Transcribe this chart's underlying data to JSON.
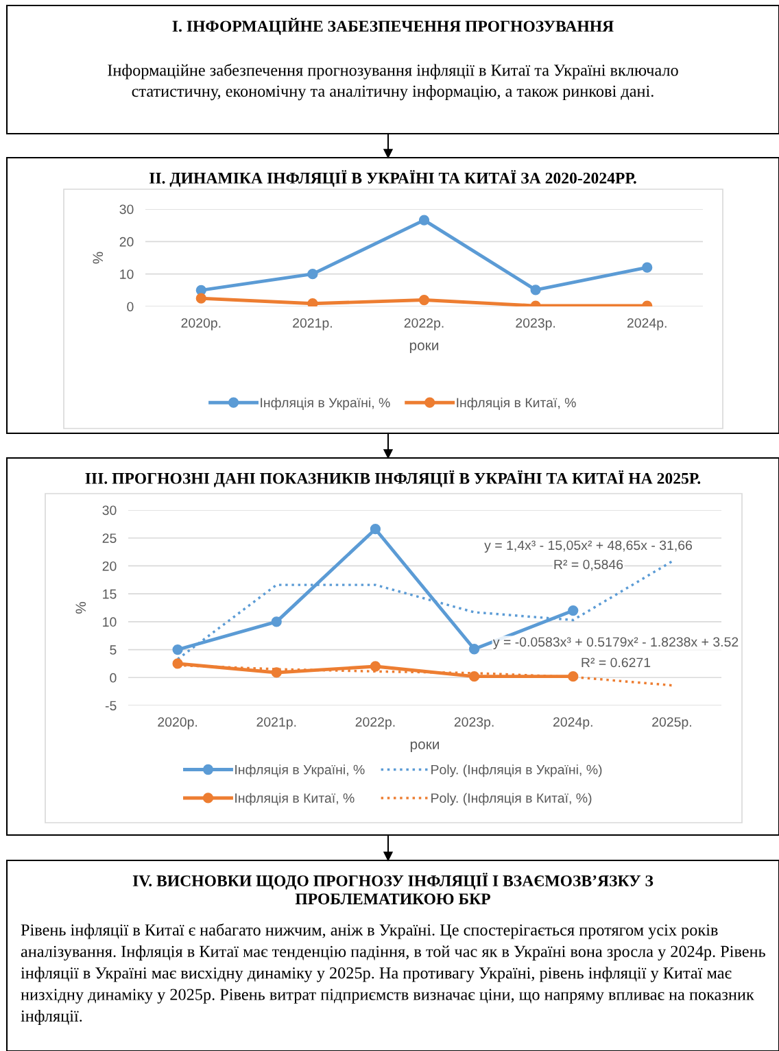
{
  "chart_data": [
    {
      "type": "other",
      "title": "I. ІНФОРМАЦІЙНЕ ЗАБЕЗПЕЧЕННЯ ПРОГНОЗУВАННЯ",
      "annotations": [
        "Інформаційне забезпечення прогнозування інфляції в Китаї та Україні включало\nстатистичну, економічну та аналітичну інформацію, а також ринкові дані."
      ]
    },
    {
      "type": "line",
      "title": "II. ДИНАМІКА ІНФЛЯЦІЇ В УКРАЇНІ ТА КИТАЇ ЗА 2020-2024РР.",
      "xlabel": "роки",
      "ylabel": "%",
      "categories": [
        "2020р.",
        "2021р.",
        "2022р.",
        "2023р.",
        "2024р."
      ],
      "series": [
        {
          "name": "Інфляція в Україні, %",
          "color": "#5b9bd5",
          "values": [
            5.0,
            10.0,
            26.6,
            5.1,
            12.0
          ]
        },
        {
          "name": "Інфляція в Китаї, %",
          "color": "#ed7d31",
          "values": [
            2.5,
            0.9,
            2.0,
            0.2,
            0.2
          ]
        }
      ],
      "ylim": [
        0,
        30
      ],
      "yticks": [
        0,
        10,
        20,
        30
      ],
      "grid": "y",
      "legend": "bottom",
      "marker": "circle"
    },
    {
      "type": "line",
      "title": "III. ПРОГНОЗНІ ДАНІ ПОКАЗНИКІВ ІНФЛЯЦІЇ В УКРАЇНІ ТА КИТАЇ НА 2025Р.",
      "xlabel": "роки",
      "ylabel": "%",
      "categories": [
        "2020р.",
        "2021р.",
        "2022р.",
        "2023р.",
        "2024р.",
        "2025р."
      ],
      "series": [
        {
          "name": "Інфляція в Україні, %",
          "color": "#5b9bd5",
          "values": [
            5.0,
            10.0,
            26.6,
            5.1,
            12.0,
            null
          ]
        },
        {
          "name": "Інфляція в Китаї, %",
          "color": "#ed7d31",
          "values": [
            2.5,
            0.9,
            2.0,
            0.2,
            0.2,
            null
          ]
        },
        {
          "name": "Poly. (Інфляція в Україні, %)",
          "type": "line",
          "line_style": "dotted",
          "marker": "none",
          "color": "#5b9bd5",
          "x": [
            "2020р.",
            "2021р.",
            "2022р.",
            "2023р.",
            "2024р.",
            "2025р."
          ],
          "values": [
            3.3,
            16.6,
            16.6,
            11.7,
            10.3,
            20.8
          ]
        },
        {
          "name": "Poly. (Інфляція в Китаї, %)",
          "type": "line",
          "line_style": "dotted",
          "marker": "none",
          "color": "#ed7d31",
          "x": [
            "2020р.",
            "2021р.",
            "2022р.",
            "2023р.",
            "2024р.",
            "2025р."
          ],
          "values": [
            2.2,
            1.5,
            1.1,
            0.8,
            0.1,
            -1.4
          ]
        }
      ],
      "ylim": [
        -5,
        30
      ],
      "yticks": [
        {
          "value": -5,
          "label": "-5"
        },
        0,
        5,
        10,
        15,
        20,
        25,
        30
      ],
      "grid": "y",
      "legend": "bottom",
      "marker": "circle",
      "annotations": [
        "y = 1,4x³ - 15,05x² + 48,65x - 31,66",
        "R² = 0,5846",
        "y = -0.0583x³ + 0.5179x² - 1.8238x + 3.52",
        "R² = 0.6271"
      ]
    },
    {
      "type": "other",
      "title": "IV. ВИСНОВКИ ЩОДО ПРОГНОЗУ ІНФЛЯЦІЇ І ВЗАЄМОЗВ’ЯЗКУ З\nПРОБЛЕМАТИКОЮ БКР",
      "annotations": [
        "Рівень інфляції в Китаї є набагато нижчим, аніж в Україні. Це спостерігається протягом усіх років аналізування. Інфляція в Китаї має тенденцію падіння, в той час як в Україні вона зросла у 2024р. Рівень інфляції в Україні має висхідну динаміку у 2025р. На противагу Україні, рівень інфляції у Китаї має низхідну динаміку у 2025р. Рівень витрат підприємств визначає ціни, що напряму впливає на показник інфляції."
      ]
    }
  ]
}
